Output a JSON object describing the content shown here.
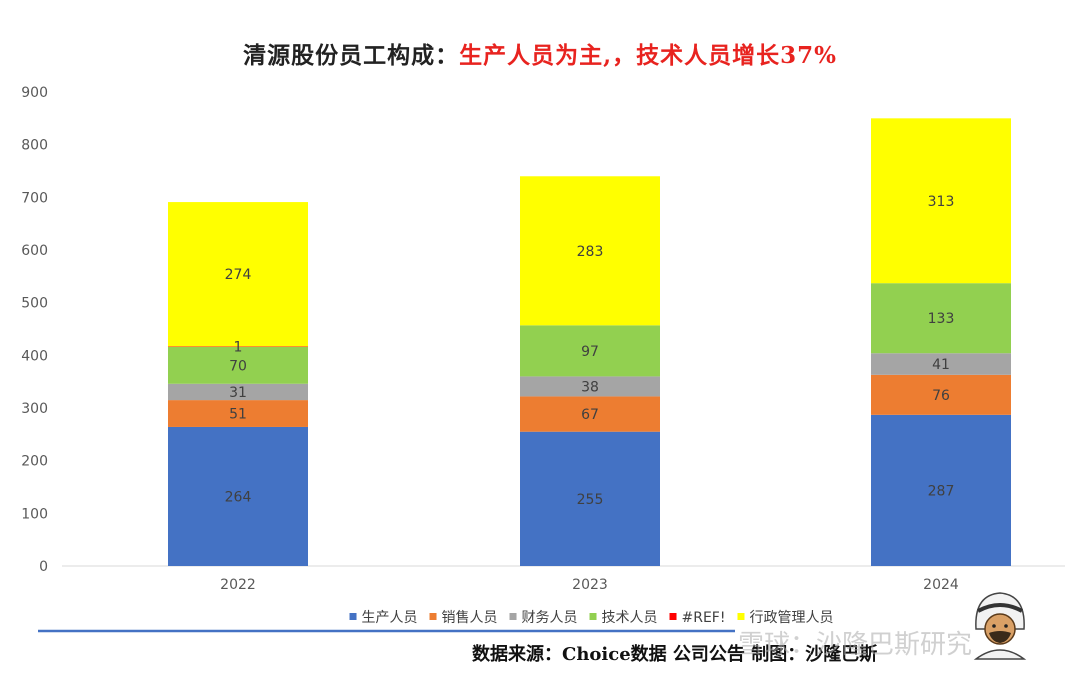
{
  "title": {
    "black": "清源股份员工构成：",
    "red": "生产人员为主,，技术人员增长37%"
  },
  "chart_data": {
    "type": "bar",
    "stacked": true,
    "categories": [
      "2022",
      "2023",
      "2024"
    ],
    "series": [
      {
        "name": "生产人员",
        "color": "#4472c4",
        "values": [
          264,
          255,
          287
        ],
        "labels": [
          "264",
          "255",
          "287"
        ]
      },
      {
        "name": "销售人员",
        "color": "#ed7d31",
        "values": [
          51,
          67,
          76
        ],
        "labels": [
          "51",
          "67",
          "76"
        ]
      },
      {
        "name": "财务人员",
        "color": "#a5a5a5",
        "values": [
          31,
          38,
          41
        ],
        "labels": [
          "31",
          "38",
          "41"
        ]
      },
      {
        "name": "技术人员",
        "color": "#92d050",
        "values": [
          70,
          97,
          133
        ],
        "labels": [
          "70",
          "97",
          "133"
        ]
      },
      {
        "name": "#REF!",
        "color": "#ff0000",
        "values": [
          1,
          0,
          0
        ],
        "labels": [
          "1",
          "",
          ""
        ]
      },
      {
        "name": "行政管理人员",
        "color": "#ffff00",
        "values": [
          274,
          283,
          313
        ],
        "labels": [
          "274",
          "283",
          "313"
        ]
      }
    ],
    "ylim": [
      0,
      900
    ],
    "yticks": [
      "0",
      "100",
      "200",
      "300",
      "400",
      "500",
      "600",
      "700",
      "800",
      "900"
    ],
    "legend_position": "bottom",
    "xlabel": "",
    "ylabel": ""
  },
  "footer": {
    "source": "数据来源：Choice数据   公司公告   制图：沙隆巴斯",
    "watermark": "雪球：沙隆巴斯研究",
    "rule_color": "#4472c4"
  }
}
